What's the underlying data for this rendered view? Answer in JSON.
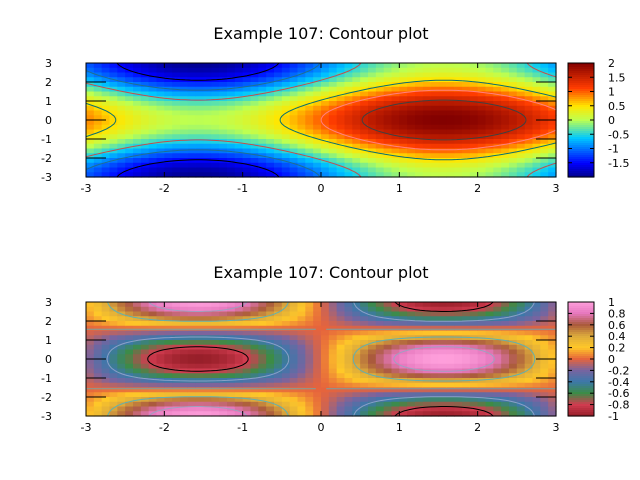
{
  "chart_data": [
    {
      "type": "heatmap",
      "title": "Example 107: Contour plot",
      "xlabel": "",
      "ylabel": "",
      "xlim": [
        -3,
        3
      ],
      "ylim": [
        -3,
        3
      ],
      "x_ticks": [
        "-3",
        "-2",
        "-1",
        "0",
        "1",
        "2",
        "3"
      ],
      "y_ticks": [
        "3",
        "2",
        "1",
        "0",
        "-1",
        "-2",
        "-3"
      ],
      "colorbar_range": [
        -2,
        2
      ],
      "colorbar_ticks": [
        "2",
        "1.5",
        "1",
        "0.5",
        "0",
        "-0.5",
        "-1",
        "-1.5"
      ],
      "colormap": "jet",
      "function": "sin(x) + cos(y)",
      "contour_levels": [
        -1.5,
        -1,
        -0.5,
        0.5,
        1,
        1.5
      ],
      "contour_colors": [
        "#000000",
        "#1f6f8f",
        "#c0504d",
        "#0a7070",
        "#ff8080",
        "#404040"
      ]
    },
    {
      "type": "heatmap",
      "title": "Example 107: Contour plot",
      "xlabel": "",
      "ylabel": "",
      "xlim": [
        -3,
        3
      ],
      "ylim": [
        -3,
        3
      ],
      "x_ticks": [
        "-3",
        "-2",
        "-1",
        "0",
        "1",
        "2",
        "3"
      ],
      "y_ticks": [
        "3",
        "2",
        "1",
        "0",
        "-1",
        "-2",
        "-3"
      ],
      "colorbar_range": [
        -1,
        1
      ],
      "colorbar_ticks": [
        "1",
        "0.8",
        "0.6",
        "0.4",
        "0.2",
        "0",
        "-0.2",
        "-0.4",
        "-0.6",
        "-0.8",
        "-1"
      ],
      "colormap": "cyclic-palette",
      "function": "sin(x) * cos(y)",
      "contour_levels": [
        -0.8,
        -0.4,
        0,
        0.4,
        0.8
      ],
      "contour_colors": [
        "#000000",
        "#8aa0c8",
        "#7aa0a0",
        "#60b0b0",
        "#a0a0c0"
      ]
    }
  ]
}
